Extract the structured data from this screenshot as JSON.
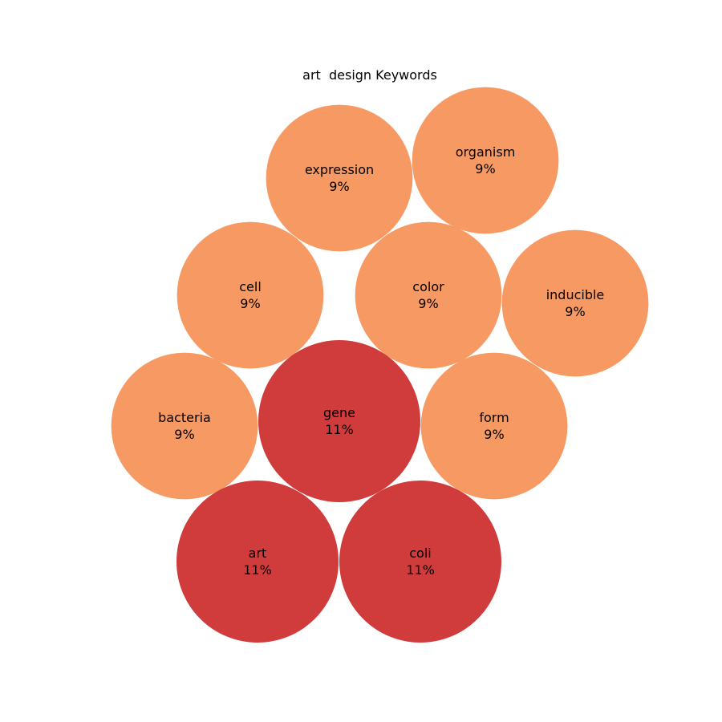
{
  "chart_data": {
    "type": "bubble",
    "title": "art  design Keywords",
    "colors": {
      "high": "#d03b3b",
      "low": "#f79963"
    },
    "bubbles": [
      {
        "label": "expression",
        "value": "9%",
        "percent": 9
      },
      {
        "label": "organism",
        "value": "9%",
        "percent": 9
      },
      {
        "label": "cell",
        "value": "9%",
        "percent": 9
      },
      {
        "label": "color",
        "value": "9%",
        "percent": 9
      },
      {
        "label": "inducible",
        "value": "9%",
        "percent": 9
      },
      {
        "label": "bacteria",
        "value": "9%",
        "percent": 9
      },
      {
        "label": "gene",
        "value": "11%",
        "percent": 11
      },
      {
        "label": "form",
        "value": "9%",
        "percent": 9
      },
      {
        "label": "art",
        "value": "11%",
        "percent": 11
      },
      {
        "label": "coli",
        "value": "11%",
        "percent": 11
      }
    ]
  }
}
